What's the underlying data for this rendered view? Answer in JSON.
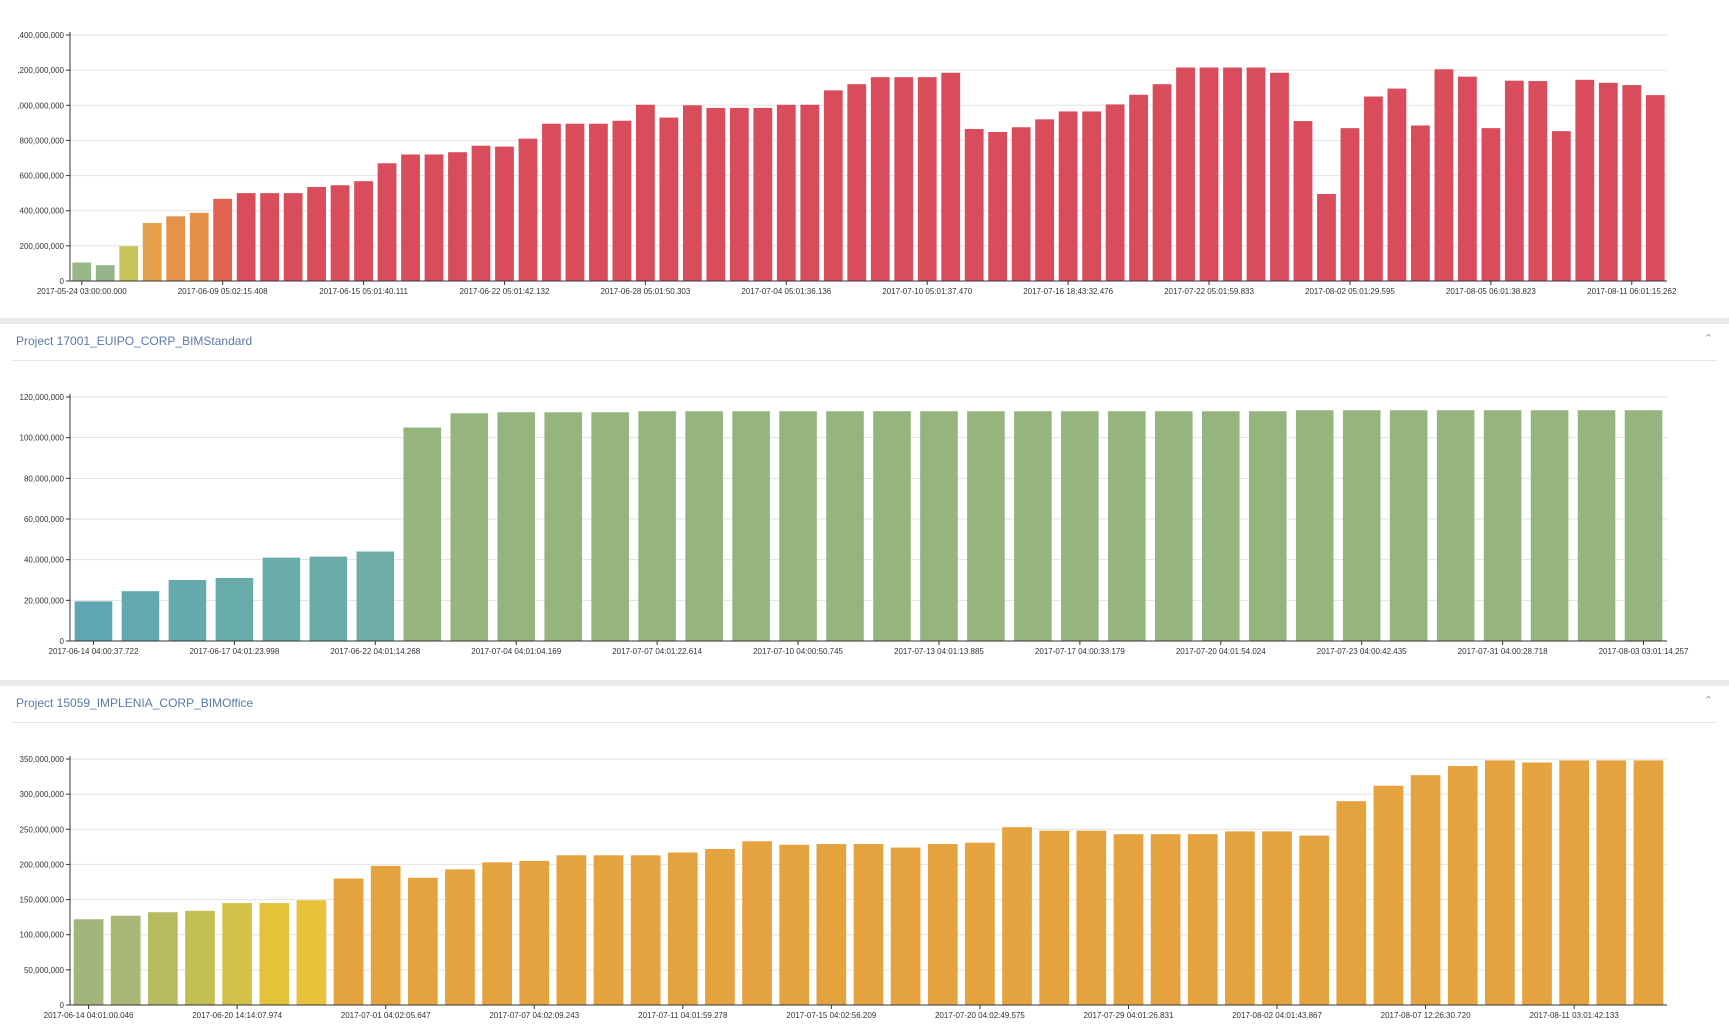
{
  "panels": [
    {
      "title": "",
      "chart_data": {
        "type": "bar",
        "ylim": [
          0,
          1400000000
        ],
        "yticks": [
          0,
          200000000,
          400000000,
          600000000,
          800000000,
          1000000000,
          1200000000,
          1400000000
        ],
        "ytick_labels": [
          "0",
          "200,000,000",
          "400,000,000",
          "600,000,000",
          "800,000,000",
          ",000,000,000",
          ",200,000,000",
          ",400,000,000"
        ],
        "xtick_labels": [
          "2017-05-24 03:00:00.000",
          "2017-06-09 05:02:15.408",
          "2017-06-15 05:01:40.111",
          "2017-06-22 05:01:42.132",
          "2017-06-28 05:01:50.303",
          "2017-07-04 05:01:36.136",
          "2017-07-10 05:01:37.470",
          "2017-07-16 18:43:32.476",
          "2017-07-22 05:01:59.833",
          "2017-08-02 05:01:29.595",
          "2017-08-05 06:01:38.823",
          "2017-08-11 06:01:15.262"
        ],
        "xtick_every": 6,
        "grid": true,
        "values": [
          105000000,
          90000000,
          198000000,
          330000000,
          368000000,
          388000000,
          468000000,
          500000000,
          500000000,
          500000000,
          535000000,
          545000000,
          568000000,
          670000000,
          720000000,
          720000000,
          733000000,
          770000000,
          765000000,
          810000000,
          895000000,
          895000000,
          895000000,
          912000000,
          1003000000,
          930000000,
          1000000000,
          985000000,
          985000000,
          985000000,
          1003000000,
          1003000000,
          1085000000,
          1120000000,
          1160000000,
          1160000000,
          1160000000,
          1185000000,
          865000000,
          848000000,
          875000000,
          920000000,
          965000000,
          965000000,
          1005000000,
          1060000000,
          1120000000,
          1215000000,
          1215000000,
          1215000000,
          1215000000,
          1185000000,
          910000000,
          495000000,
          870000000,
          1050000000,
          1095000000,
          885000000,
          1205000000,
          1163000000,
          870000000,
          1140000000,
          1138000000,
          853000000,
          1145000000,
          1128000000,
          1115000000,
          1058000000
        ],
        "colors": [
          "#98b88a",
          "#95b58a",
          "#c9c45a",
          "#e5a04a",
          "#e5924a",
          "#e5904a",
          "#e0624f",
          "#d94c5c"
        ]
      }
    },
    {
      "title": "Project 17001_EUIPO_CORP_BIMStandard",
      "chart_data": {
        "type": "bar",
        "ylim": [
          0,
          120000000
        ],
        "yticks": [
          0,
          20000000,
          40000000,
          60000000,
          80000000,
          100000000,
          120000000
        ],
        "ytick_labels": [
          "0",
          "20,000,000",
          "40,000,000",
          "60,000,000",
          "80,000,000",
          "100,000,000",
          "120,000,000"
        ],
        "xtick_labels": [
          "2017-06-14 04:00:37.722",
          "2017-06-17 04:01:23.998",
          "2017-06-22 04:01:14.268",
          "2017-07-04 04:01:04.169",
          "2017-07-07 04:01:22.614",
          "2017-07-10 04:00:50.745",
          "2017-07-13 04:01:13.885",
          "2017-07-17 04:00:33.179",
          "2017-07-20 04:01:54.024",
          "2017-07-23 04:00:42.435",
          "2017-07-31 04:00:28.718",
          "2017-08-03 03:01:14.257"
        ],
        "xtick_every": 3,
        "grid": true,
        "values": [
          19500000,
          24500000,
          30000000,
          31000000,
          41000000,
          41500000,
          44000000,
          105000000,
          112000000,
          112500000,
          112500000,
          112500000,
          113000000,
          113000000,
          113000000,
          113000000,
          113000000,
          113000000,
          113000000,
          113000000,
          113000000,
          113000000,
          113000000,
          113000000,
          113000000,
          113000000,
          113500000,
          113500000,
          113500000,
          113500000,
          113500000,
          113500000,
          113500000,
          113500000
        ],
        "colors": [
          "#5fa8b3",
          "#62a9b0",
          "#66aaad",
          "#68abab",
          "#6aaca9",
          "#6caca8",
          "#6eada6",
          "#95b47e"
        ]
      }
    },
    {
      "title": "Project 15059_IMPLENIA_CORP_BIMOffice",
      "chart_data": {
        "type": "bar",
        "ylim": [
          0,
          350000000
        ],
        "yticks": [
          0,
          50000000,
          100000000,
          150000000,
          200000000,
          250000000,
          300000000,
          350000000
        ],
        "ytick_labels": [
          "0",
          "50,000,000",
          "100,000,000",
          "150,000,000",
          "200,000,000",
          "250,000,000",
          "300,000,000",
          "350,000,000"
        ],
        "xtick_labels": [
          "2017-06-14 04:01:00.046",
          "2017-06-20 14:14:07.974",
          "2017-07-01 04:02:05.647",
          "2017-07-07 04:02:09.243",
          "2017-07-11 04:01:59.278",
          "2017-07-15 04:02:56.209",
          "2017-07-20 04:02:49.575",
          "2017-07-29 04:01:26.831",
          "2017-08-02 04:01:43.867",
          "2017-08-07 12:26:30.720",
          "2017-08-11 03:01:42.133"
        ],
        "xtick_every": 4,
        "grid": true,
        "values": [
          122000000,
          127000000,
          132000000,
          134000000,
          145000000,
          145000000,
          149000000,
          180000000,
          198000000,
          181000000,
          193000000,
          203000000,
          205000000,
          213000000,
          213000000,
          213000000,
          217000000,
          222000000,
          233000000,
          228000000,
          229000000,
          229000000,
          224000000,
          229000000,
          231000000,
          253000000,
          248000000,
          248000000,
          243000000,
          243000000,
          243000000,
          247000000,
          247000000,
          241000000,
          290000000,
          312000000,
          327000000,
          340000000,
          348000000,
          345000000,
          348000000,
          348000000,
          348000000
        ],
        "colors": [
          "#a3b57a",
          "#a8b776",
          "#b6bb62",
          "#c3bf52",
          "#d3c24a",
          "#e2c33a",
          "#e8c23a",
          "#e5a340"
        ]
      }
    }
  ]
}
